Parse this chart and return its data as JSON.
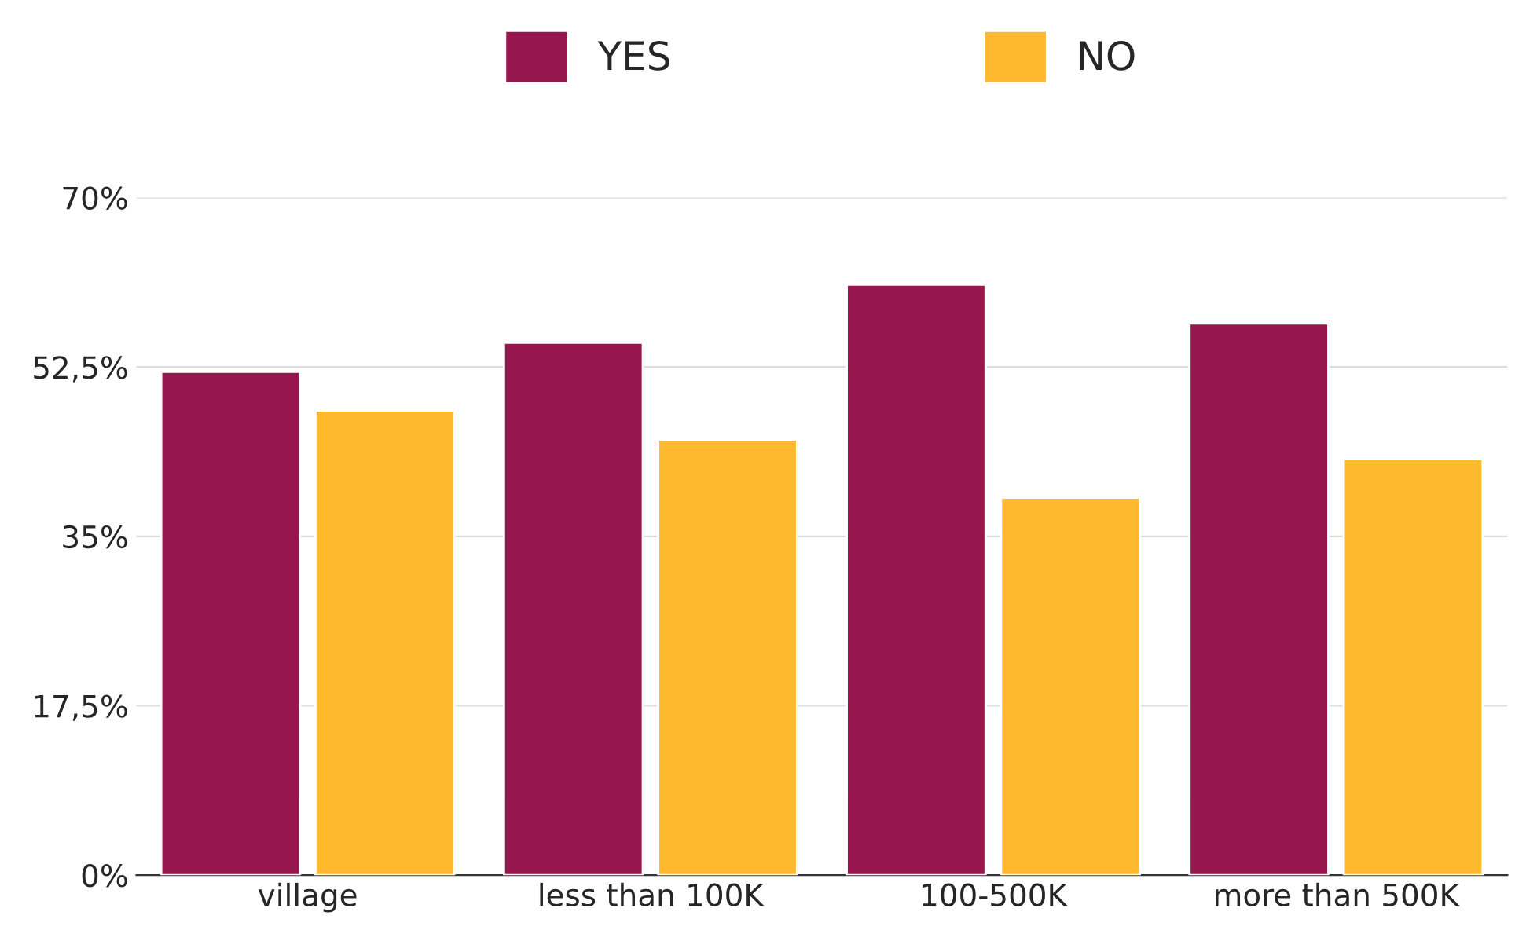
{
  "chart_data": {
    "type": "bar",
    "categories": [
      "village",
      "less than 100K",
      "100-500K",
      "more than 500K"
    ],
    "series": [
      {
        "name": "YES",
        "color": "#95174e",
        "values": [
          52,
          55,
          61,
          57
        ]
      },
      {
        "name": "NO",
        "color": "#ffb92f",
        "values": [
          48,
          45,
          39,
          43
        ]
      }
    ],
    "ylim": [
      0,
      70
    ],
    "yticks": [
      {
        "value": 0,
        "label": "0%"
      },
      {
        "value": 17.5,
        "label": "17,5%"
      },
      {
        "value": 35,
        "label": "35%"
      },
      {
        "value": 52.5,
        "label": "52,5%"
      },
      {
        "value": 70,
        "label": "70%"
      }
    ],
    "grid": "y",
    "legend": "top"
  }
}
